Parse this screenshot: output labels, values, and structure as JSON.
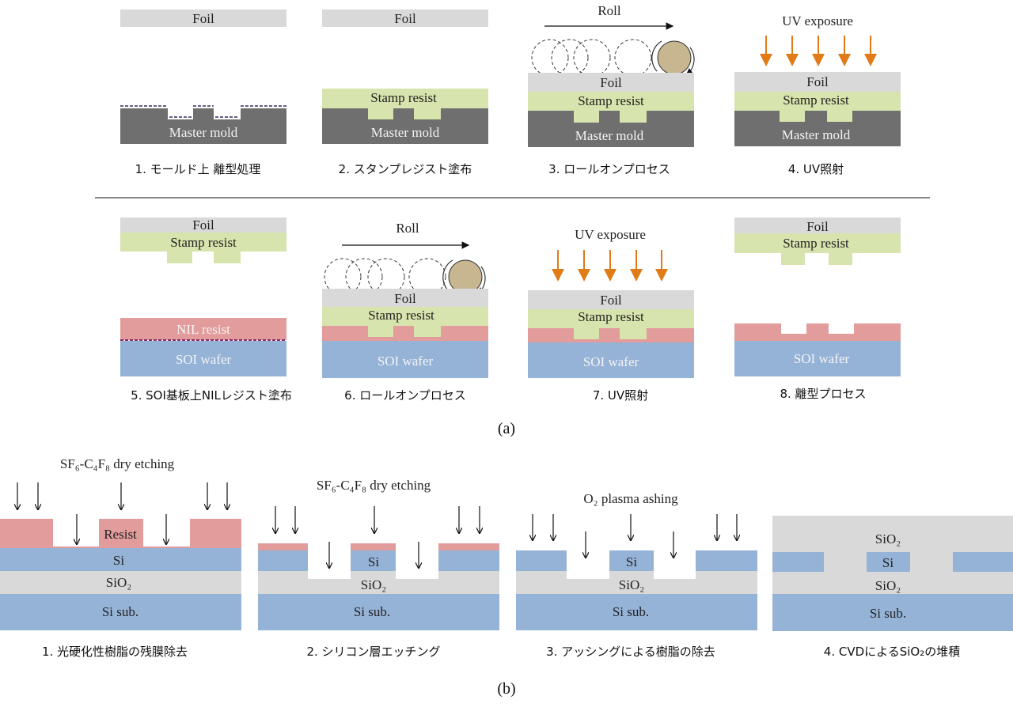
{
  "colors": {
    "foil": "#d9d9d9",
    "stamp_resist": "#d7e4ad",
    "master_mold": "#6f6f6f",
    "nil_resist": "#e29c9c",
    "soi_wafer": "#95b3d7",
    "sio2": "#d9d9d9",
    "roller": "#c8b691",
    "uv_arrow": "#e07b18"
  },
  "labels": {
    "foil": "Foil",
    "stamp_resist": "Stamp resist",
    "master_mold": "Master mold",
    "roll": "Roll",
    "uv_exposure": "UV exposure",
    "nil_resist": "NIL resist",
    "soi_wafer": "SOI wafer",
    "dry_etching": "SF₆-C₄F₈ dry etching",
    "ashing": "O₂ plasma ashing",
    "resist": "Resist",
    "si": "Si",
    "sio2": "SiO₂",
    "si_sub": "Si sub."
  },
  "part_a": {
    "label": "(a)",
    "captions": [
      "1. モールド上 離型処理",
      "2. スタンプレジスト塗布",
      "3. ロールオンプロセス",
      "4. UV照射",
      "5. SOI基板上NILレジスト塗布",
      "6. ロールオンプロセス",
      "7. UV照射",
      "8. 離型プロセス"
    ]
  },
  "part_b": {
    "label": "(b)",
    "captions": [
      "1. 光硬化性樹脂の残膜除去",
      "2. シリコン層エッチング",
      "3. アッシングによる樹脂の除去",
      "4. CVDによるSiO₂の堆積"
    ]
  }
}
